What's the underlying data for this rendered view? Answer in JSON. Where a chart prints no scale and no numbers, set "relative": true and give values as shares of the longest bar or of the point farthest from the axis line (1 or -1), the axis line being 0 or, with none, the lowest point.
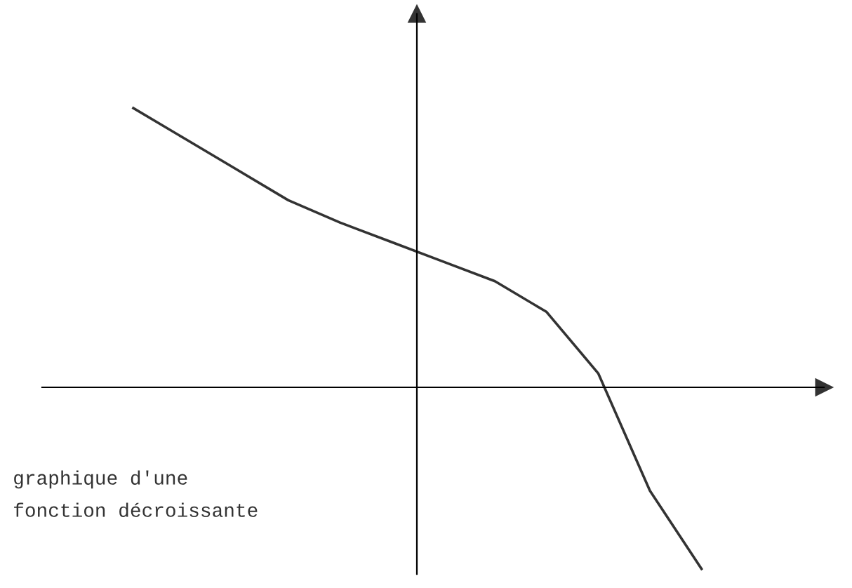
{
  "chart_data": {
    "type": "line",
    "relative": true,
    "categories": [
      null,
      null,
      null,
      null,
      null,
      null,
      null,
      null,
      null,
      null,
      null,
      null
    ],
    "series": [
      {
        "color": "#333333",
        "values": [
          1,
          0.89,
          0.78,
          0.67,
          0.59,
          0.52,
          0.45,
          0.38,
          0.27,
          0.05,
          -0.37,
          -0.65
        ]
      }
    ],
    "annotations": [
      "graphique d'une\nfonction décroissante"
    ],
    "marker": "none",
    "line_style": "solid"
  }
}
